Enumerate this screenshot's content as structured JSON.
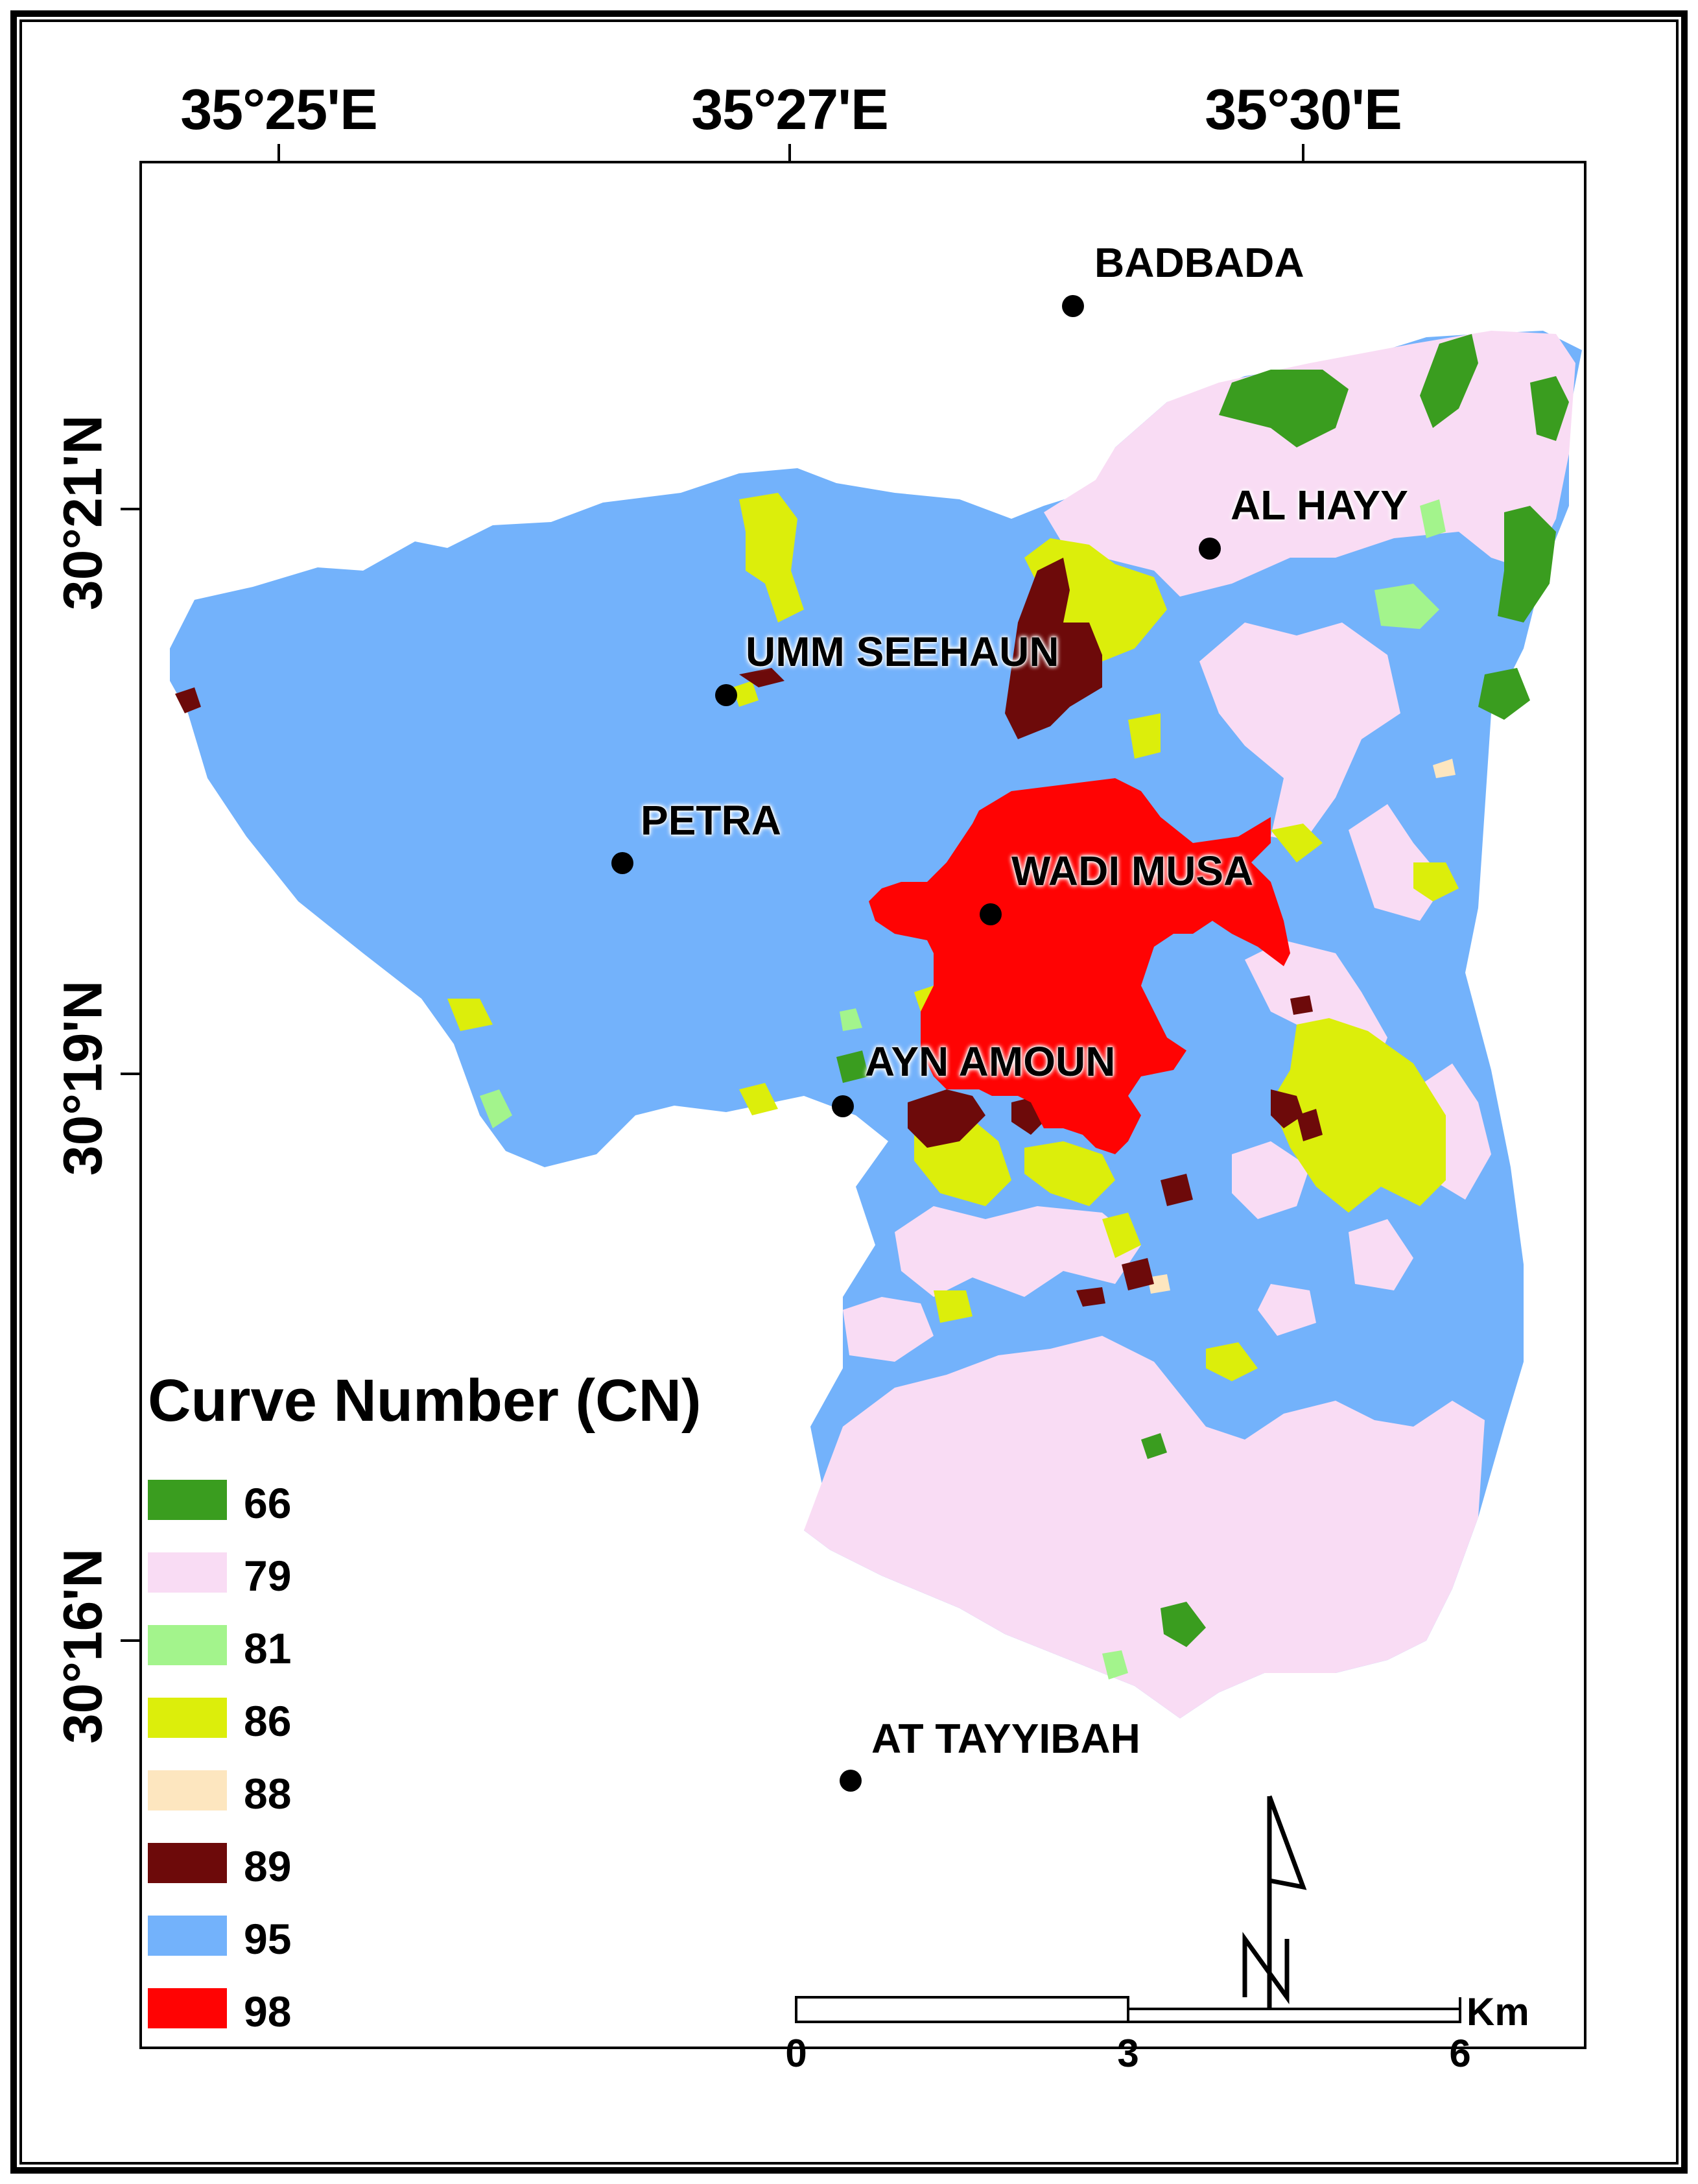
{
  "map": {
    "lon_ticks": [
      "35°25'E",
      "35°27'E",
      "35°30'E"
    ],
    "lat_ticks": [
      "30°21'N",
      "30°19'N",
      "30°16'N"
    ],
    "places": {
      "badbada": "BADBADA",
      "al_hayy": "AL HAYY",
      "umm_seehaun": "UMM SEEHAUN",
      "petra": "PETRA",
      "wadi_musa": "WADI MUSA",
      "ayn_amoun": "AYN AMOUN",
      "at_tayyibah": "AT TAYYIBAH"
    },
    "north_arrow": "N",
    "scale": {
      "ticks": [
        "0",
        "3",
        "6"
      ],
      "unit": "Km"
    }
  },
  "legend": {
    "title": "Curve Number (CN)",
    "items": [
      {
        "label": "66",
        "color": "#3a9d1f"
      },
      {
        "label": "79",
        "color": "#f9dcf4"
      },
      {
        "label": "81",
        "color": "#a3f48c"
      },
      {
        "label": "86",
        "color": "#dcee0b"
      },
      {
        "label": "88",
        "color": "#fde6bf"
      },
      {
        "label": "89",
        "color": "#6d0a0a"
      },
      {
        "label": "95",
        "color": "#73b2fb"
      },
      {
        "label": "98",
        "color": "#ff0303"
      }
    ]
  }
}
